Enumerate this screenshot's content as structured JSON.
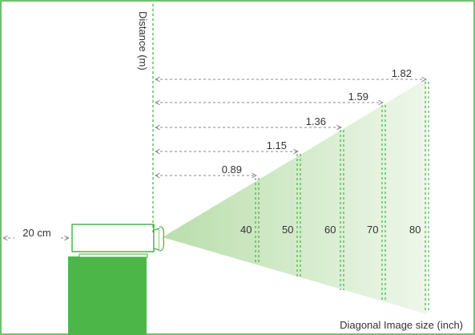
{
  "diagram": {
    "distance_axis_label": "Distance (m)",
    "image_size_axis_label": "Diagonal Image size (inch)",
    "wall_offset_label": "20 cm",
    "measurements": [
      {
        "size": "40",
        "distance": "0.89"
      },
      {
        "size": "50",
        "distance": "1.15"
      },
      {
        "size": "60",
        "distance": "1.36"
      },
      {
        "size": "70",
        "distance": "1.59"
      },
      {
        "size": "80",
        "distance": "1.82"
      }
    ],
    "colors": {
      "frame": "#3fae3f",
      "dashed_guide": "#35b035",
      "arrow": "#8a8a8a",
      "stand": "#4cb748",
      "beam_start": "#cfe8c4",
      "beam_end": "#eef7ea"
    }
  }
}
